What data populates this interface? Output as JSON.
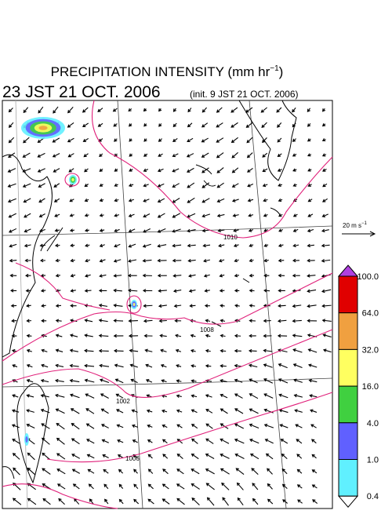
{
  "header": {
    "title": "PRECIPITATION INTENSITY (mm hr",
    "title_sup": "−1",
    "title_end": ")",
    "valid_time": "23 JST 21 OCT. 2006",
    "init_time": "(init. 9 JST 21 OCT. 2006)"
  },
  "wind_scale": {
    "label": "20 m s",
    "label_sup": "−1"
  },
  "colorbar": {
    "labels": [
      "100.0",
      "64.0",
      "32.0",
      "16.0",
      "4.0",
      "1.0",
      "0.4"
    ],
    "colors": [
      "#e00000",
      "#f0a040",
      "#ffff60",
      "#40d040",
      "#6060ff",
      "#60f0ff"
    ],
    "over_color": "#b040e0",
    "under_color": "#ffffff"
  },
  "contours": {
    "labels": [
      "1010",
      "1008",
      "1002",
      "1006"
    ],
    "color": "#e0207a"
  }
}
